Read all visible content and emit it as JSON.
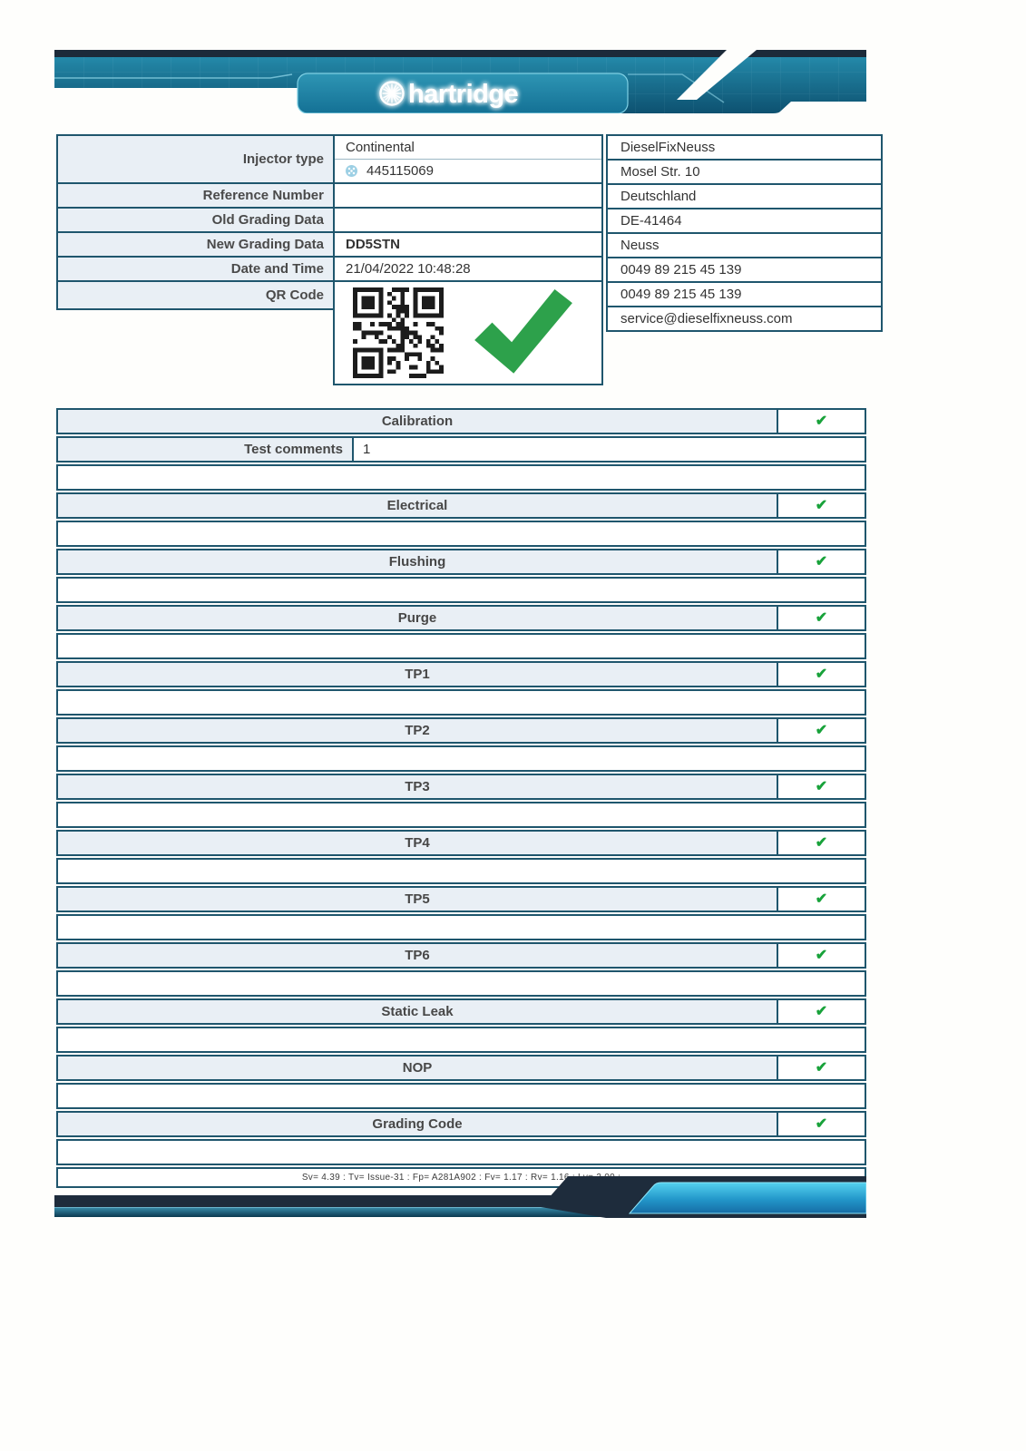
{
  "brand": {
    "logo_text": "hartridge",
    "banner_teal_dark": "#0d5170",
    "banner_teal_light": "#2e95b4",
    "banner_navy": "#1c2a39",
    "bottom_cyan": "#38bde4"
  },
  "info": {
    "labels": {
      "injector_type": "Injector type",
      "reference_number": "Reference Number",
      "old_grading": "Old Grading Data",
      "new_grading": "New Grading Data",
      "date_time": "Date and Time",
      "qr_code": "QR Code"
    },
    "values": {
      "make": "Continental",
      "serial": "445115069",
      "reference": "",
      "old_grading": "",
      "new_grading": "DD5STN",
      "date_time": "21/04/2022 10:48:28"
    }
  },
  "customer": {
    "lines": [
      "DieselFixNeuss",
      "Mosel Str. 10",
      "Deutschland",
      "DE-41464",
      "Neuss",
      "0049 89 215 45 139",
      "0049 89 215 45 139",
      "service@dieselfixneuss.com"
    ]
  },
  "tests": {
    "calibration_label": "Calibration",
    "comments_label": "Test comments",
    "comments_value": "1",
    "sections": [
      {
        "label": "Electrical",
        "passed": true
      },
      {
        "label": "Flushing",
        "passed": true
      },
      {
        "label": "Purge",
        "passed": true
      },
      {
        "label": "TP1",
        "passed": true
      },
      {
        "label": "TP2",
        "passed": true
      },
      {
        "label": "TP3",
        "passed": true
      },
      {
        "label": "TP4",
        "passed": true
      },
      {
        "label": "TP5",
        "passed": true
      },
      {
        "label": "TP6",
        "passed": true
      },
      {
        "label": "Static Leak",
        "passed": true
      },
      {
        "label": "NOP",
        "passed": true
      },
      {
        "label": "Grading Code",
        "passed": true
      }
    ]
  },
  "footer": {
    "version_line": "Sv= 4.39  :  Tv= Issue-31  :  Fp= A281A902  :  Fv= 1.17  :  Rv= 1.16  :  Lv= 3.00  :"
  },
  "icons": {
    "check": "✔",
    "check_color_small": "#18a23a",
    "check_color_big": "#2da14b",
    "border_color": "#1f566d",
    "label_bg": "#e9eff5"
  }
}
